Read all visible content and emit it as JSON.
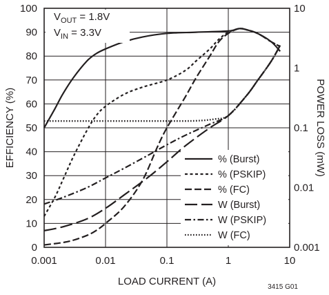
{
  "chart_data": {
    "type": "line",
    "xlabel": "LOAD CURRENT (A)",
    "ylabel_left": "EFFICIENCY (%)",
    "ylabel_right": "POWER LOSS (mW)",
    "x_scale": "log",
    "x_range": [
      0.001,
      10
    ],
    "x_ticks": [
      "0.001",
      "0.01",
      "0.1",
      "1",
      "10"
    ],
    "y_left_range": [
      0,
      100
    ],
    "y_left_ticks": [
      "0",
      "10",
      "20",
      "30",
      "40",
      "50",
      "60",
      "70",
      "80",
      "90",
      "100"
    ],
    "y_right_scale": "log",
    "y_right_range": [
      0.001,
      10
    ],
    "y_right_ticks": [
      "0.001",
      "0.01",
      "0.1",
      "1",
      "10"
    ],
    "grid": true,
    "legend_position": "lower-right",
    "annotations": {
      "vout_main": "V",
      "vout_sub": "OUT",
      "vout_rest": " = 1.8V",
      "vin_main": "V",
      "vin_sub": "IN",
      "vin_rest": " = 3.3V",
      "figure_id": "3415 G01"
    },
    "series": [
      {
        "name": "% (Burst)",
        "axis": "left",
        "dash": "solid",
        "x": [
          0.001,
          0.0015,
          0.002,
          0.003,
          0.005,
          0.007,
          0.01,
          0.02,
          0.04,
          0.1,
          0.3,
          1,
          1.5,
          2,
          3,
          5,
          7
        ],
        "y": [
          50,
          58,
          64,
          71,
          78,
          81,
          83,
          86,
          88,
          89.5,
          90,
          90.5,
          91.5,
          91,
          89.5,
          86,
          82
        ]
      },
      {
        "name": "% (PSKIP)",
        "axis": "left",
        "dash": "short",
        "x": [
          0.001,
          0.0015,
          0.002,
          0.003,
          0.005,
          0.007,
          0.01,
          0.02,
          0.04,
          0.1,
          0.2,
          0.3,
          0.5,
          0.7,
          1,
          1.5,
          2,
          3,
          5,
          7
        ],
        "y": [
          13,
          21,
          28,
          38,
          49,
          55,
          59,
          64,
          67,
          70,
          74,
          78,
          83,
          87,
          90,
          91.5,
          91,
          89.5,
          86,
          84
        ]
      },
      {
        "name": "% (FC)",
        "axis": "left",
        "dash": "medium",
        "x": [
          0.001,
          0.002,
          0.003,
          0.005,
          0.007,
          0.01,
          0.02,
          0.04,
          0.07,
          0.1,
          0.2,
          0.3,
          0.5,
          0.7,
          1,
          1.5,
          2,
          3,
          5,
          7
        ],
        "y": [
          1,
          2,
          3,
          5,
          7,
          10,
          17,
          28,
          42,
          50,
          63,
          71,
          80,
          86,
          89.5,
          91.5,
          91,
          89.5,
          86,
          84
        ]
      },
      {
        "name": "W (Burst)",
        "axis": "right",
        "dash": "long",
        "x": [
          0.001,
          0.002,
          0.005,
          0.01,
          0.02,
          0.05,
          0.1,
          0.2,
          0.5,
          1,
          2,
          3,
          5,
          7
        ],
        "y": [
          0.0019,
          0.0022,
          0.003,
          0.0045,
          0.0075,
          0.015,
          0.027,
          0.05,
          0.1,
          0.16,
          0.35,
          0.62,
          1.3,
          2.4
        ]
      },
      {
        "name": "W (PSKIP)",
        "axis": "right",
        "dash": "dashdot",
        "x": [
          0.001,
          0.002,
          0.005,
          0.01,
          0.02,
          0.05,
          0.1,
          0.2,
          0.5,
          1,
          2,
          3,
          5,
          7
        ],
        "y": [
          0.0053,
          0.0068,
          0.01,
          0.0145,
          0.021,
          0.035,
          0.052,
          0.075,
          0.115,
          0.16,
          0.35,
          0.62,
          1.3,
          2.4
        ]
      },
      {
        "name": "W (FC)",
        "axis": "right",
        "dash": "dotted",
        "x": [
          0.001,
          0.01,
          0.1,
          0.3,
          0.6,
          1,
          2,
          3,
          5,
          7
        ],
        "y": [
          0.13,
          0.13,
          0.13,
          0.131,
          0.14,
          0.16,
          0.35,
          0.62,
          1.3,
          2.4
        ]
      }
    ]
  }
}
